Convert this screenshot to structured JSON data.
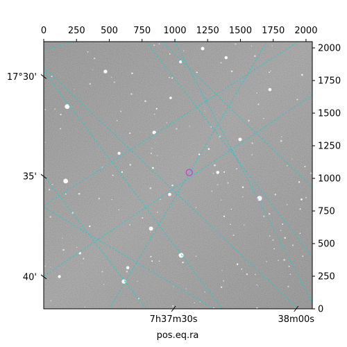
{
  "chart_data": {
    "type": "image",
    "title": "",
    "xlabel": "pos.eq.ra",
    "ylabel": "",
    "pixel_axes": {
      "xlim": [
        0,
        2048
      ],
      "ylim": [
        0,
        2048
      ],
      "x_ticks": [
        0,
        250,
        500,
        750,
        1000,
        1250,
        1500,
        1750,
        2000
      ],
      "y_ticks": [
        0,
        250,
        500,
        750,
        1000,
        1250,
        1500,
        1750,
        2000
      ]
    },
    "world_axes": {
      "ra_tick_labels": [
        {
          "label": "7h37m30s",
          "pixel": [
            990,
            -10
          ]
        },
        {
          "label": "38m00s",
          "pixel": [
            1925,
            -10
          ]
        }
      ],
      "dec_tick_labels": [
        {
          "label": "17°30'",
          "pixel": [
            -10,
            1780
          ]
        },
        {
          "label": "35'",
          "pixel": [
            -10,
            1015
          ]
        },
        {
          "label": "40'",
          "pixel": [
            -10,
            245
          ]
        }
      ]
    },
    "grid": {
      "color": "#22cccc",
      "style": "dashed",
      "lines_a": [
        [
          [
            0,
            1820
          ],
          [
            1360,
            0
          ]
        ],
        [
          [
            0,
            1020
          ],
          [
            780,
            0
          ]
        ],
        [
          [
            0,
            780
          ],
          [
            1300,
            -1
          ]
        ],
        [
          [
            0,
            790
          ],
          [
            1940,
            2048
          ]
        ],
        [
          [
            780,
            2048
          ],
          [
            2048,
            400
          ]
        ],
        [
          [
            0,
            250
          ],
          [
            2048,
            1640
          ]
        ]
      ],
      "lines_b": [
        [
          [
            210,
            2048
          ],
          [
            -1,
            1980
          ]
        ],
        [
          [
            900,
            2048
          ],
          [
            2048,
            930
          ]
        ],
        [
          [
            1700,
            2048
          ],
          [
            500,
            0
          ]
        ],
        [
          [
            0,
            1850
          ],
          [
            1940,
            0
          ]
        ],
        [
          [
            1000,
            2048
          ],
          [
            2048,
            50
          ]
        ],
        [
          [
            2048,
            2048
          ],
          [
            2048,
            2000
          ]
        ]
      ]
    },
    "marker": {
      "shape": "circle",
      "color": "#cc44cc",
      "pixel": [
        1110,
        1045
      ]
    },
    "colors": {
      "background": "#5a5a5a",
      "stars": "#ffffff",
      "grid": "#22cccc",
      "marker": "#cc44cc"
    }
  }
}
